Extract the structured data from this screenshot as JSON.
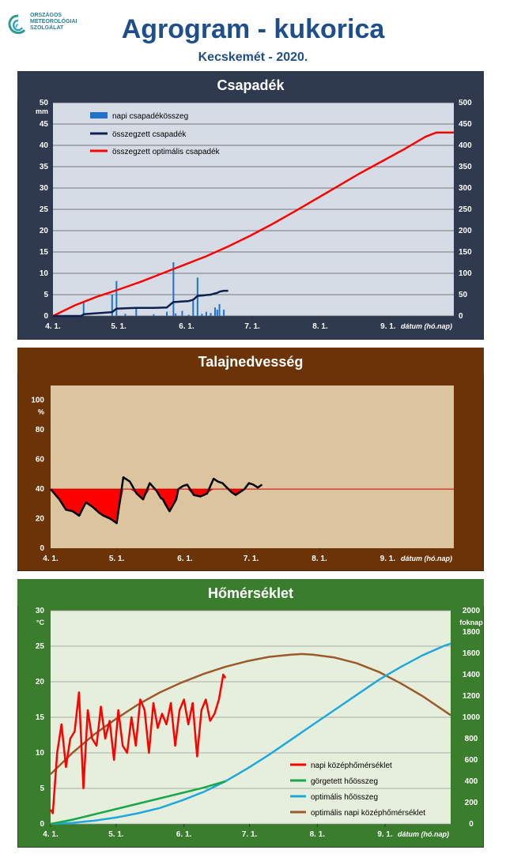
{
  "header": {
    "title": "Agrogram - kukorica",
    "subtitle": "Kecskemét - 2020.",
    "logo_lines": [
      "ORSZÁGOS",
      "METEOROLÓGIAI",
      "SZOLGÁLAT"
    ]
  },
  "colors": {
    "header_text": "#1f4e8c",
    "panel1_frame": "#2f3a4f",
    "panel1_plot": "#d6dce5",
    "panel2_frame": "#6b3306",
    "panel2_plot": "#dcc49e",
    "panel3_frame": "#3a7d2c",
    "panel3_plot": "#e6efdc"
  },
  "chart_data": [
    {
      "type": "bar+line",
      "title": "Csapadék",
      "ylabel_left": "mm",
      "xlabel": "dátum (hó.nap)",
      "x_ticks": [
        "4. 1.",
        "5. 1.",
        "6. 1.",
        "7. 1.",
        "8. 1.",
        "9. 1."
      ],
      "x_range": [
        0,
        183
      ],
      "ylim_left": [
        0,
        50
      ],
      "yticks_left": [
        0,
        5,
        10,
        15,
        20,
        25,
        30,
        35,
        40,
        45,
        50
      ],
      "ylim_right": [
        0,
        500
      ],
      "yticks_right": [
        0,
        50,
        100,
        150,
        200,
        250,
        300,
        350,
        400,
        450,
        500
      ],
      "grid": true,
      "legend_position": "top-left",
      "legend": [
        "napi csapadékösszeg",
        "összegzett csapadék",
        "összegzett optimális csapadék"
      ],
      "daily_precip": {
        "name": "napi csapadékösszeg",
        "axis": "left",
        "x": [
          13,
          14,
          27,
          29,
          33,
          38,
          46,
          52,
          55,
          56,
          59,
          62,
          64,
          66,
          68,
          70,
          72,
          74,
          75,
          76,
          78
        ],
        "values": [
          0.3,
          3.2,
          5.0,
          8.2,
          0.5,
          1.8,
          0.4,
          1.0,
          12.6,
          0.6,
          1.2,
          0.3,
          3.5,
          9.0,
          0.5,
          1.0,
          0.7,
          2.0,
          1.5,
          2.8,
          1.5
        ]
      },
      "cumulative_precip": {
        "name": "összegzett csapadék",
        "axis": "right",
        "x": [
          0,
          13,
          14,
          27,
          29,
          33,
          38,
          46,
          52,
          55,
          56,
          59,
          62,
          64,
          66,
          68,
          70,
          72,
          74,
          75,
          76,
          78,
          80
        ],
        "values": [
          0,
          0,
          4,
          9,
          17,
          18,
          19,
          19,
          20,
          33,
          33,
          34,
          35,
          38,
          47,
          48,
          49,
          50,
          53,
          54,
          57,
          59,
          59
        ]
      },
      "optimal_cumulative_precip": {
        "name": "összegzett optimális csapadék",
        "axis": "right",
        "x": [
          0,
          10,
          20,
          30,
          40,
          50,
          60,
          70,
          80,
          90,
          100,
          110,
          120,
          130,
          140,
          150,
          160,
          165,
          170,
          175,
          183
        ],
        "values": [
          0,
          25,
          45,
          62,
          80,
          100,
          120,
          140,
          163,
          188,
          215,
          244,
          274,
          304,
          334,
          362,
          390,
          405,
          420,
          430,
          430
        ]
      }
    },
    {
      "type": "line",
      "title": "Talajnedvesség",
      "ylabel": "%",
      "xlabel": "dátum (hó.nap)",
      "x_ticks": [
        "4. 1.",
        "5. 1.",
        "6. 1.",
        "7. 1.",
        "8. 1.",
        "9. 1."
      ],
      "x_range": [
        0,
        183
      ],
      "ylim": [
        0,
        110
      ],
      "yticks": [
        0,
        20,
        40,
        60,
        80,
        100
      ],
      "threshold": 40,
      "grid": false,
      "series": [
        {
          "name": "",
          "x": [
            0,
            4,
            7,
            10,
            13,
            16,
            19,
            22,
            24,
            27,
            30,
            33,
            36,
            39,
            42,
            45,
            48,
            50,
            51,
            52,
            54,
            57,
            58,
            60,
            62,
            65,
            68,
            71,
            74,
            76,
            78,
            80,
            82,
            84,
            86,
            88,
            90,
            92,
            94,
            96
          ],
          "values": [
            40,
            33,
            26,
            25,
            22,
            31,
            28,
            24,
            22,
            20,
            17,
            48,
            45,
            37,
            33,
            44,
            39,
            34,
            33,
            30,
            25,
            33,
            40,
            42,
            43,
            36,
            35,
            37,
            47,
            45,
            44,
            41,
            38,
            36,
            38,
            40,
            44,
            43,
            41,
            43
          ]
        }
      ]
    },
    {
      "type": "line",
      "title": "Hőmérséklet",
      "ylabel_left": "°C",
      "ylabel_right": "foknap",
      "xlabel": "dátum (hó.nap)",
      "x_ticks": [
        "4. 1.",
        "5. 1.",
        "6. 1.",
        "7. 1.",
        "8. 1.",
        "9. 1."
      ],
      "x_range": [
        0,
        183
      ],
      "ylim_left": [
        0,
        30
      ],
      "yticks_left": [
        0,
        5,
        10,
        15,
        20,
        25,
        30
      ],
      "ylim_right": [
        0,
        2000
      ],
      "yticks_right": [
        0,
        200,
        400,
        600,
        800,
        1000,
        1200,
        1400,
        1600,
        1800,
        2000
      ],
      "grid": true,
      "legend_position": "bottom-right",
      "legend": [
        "napi középhőmérséklet",
        "görgetett hőösszeg",
        "optimális hőösszeg",
        "optimális napi középhőmérséklet"
      ],
      "series": [
        {
          "name": "napi középhőmérséklet",
          "axis": "left",
          "x": [
            0,
            1,
            3,
            5,
            7,
            9,
            11,
            13,
            15,
            17,
            19,
            21,
            23,
            25,
            27,
            29,
            31,
            33,
            35,
            37,
            39,
            41,
            43,
            45,
            47,
            49,
            51,
            53,
            55,
            57,
            59,
            61,
            63,
            65,
            67,
            69,
            71,
            73,
            75,
            77,
            79,
            80
          ],
          "values": [
            2.0,
            1.5,
            10.0,
            14.0,
            8.0,
            12.0,
            13.0,
            18.5,
            5.0,
            16.0,
            12.0,
            11.0,
            16.5,
            12.0,
            14.5,
            9.0,
            16.0,
            11.0,
            10.0,
            15.0,
            11.0,
            17.5,
            16.0,
            10.0,
            17.0,
            13.5,
            15.5,
            14.0,
            17.0,
            11.0,
            16.0,
            17.5,
            14.0,
            17.0,
            9.5,
            16.0,
            17.5,
            14.5,
            15.5,
            17.5,
            21.0,
            20.5
          ]
        },
        {
          "name": "görgetett hőösszeg",
          "axis": "right",
          "x": [
            0,
            10,
            20,
            30,
            40,
            50,
            60,
            70,
            80
          ],
          "values": [
            0,
            40,
            90,
            140,
            190,
            240,
            290,
            340,
            400
          ]
        },
        {
          "name": "optimális hőösszeg",
          "axis": "right",
          "x": [
            0,
            10,
            20,
            30,
            40,
            50,
            60,
            70,
            80,
            90,
            100,
            110,
            120,
            130,
            140,
            150,
            160,
            170,
            180,
            183
          ],
          "values": [
            0,
            10,
            30,
            60,
            100,
            150,
            220,
            300,
            400,
            520,
            650,
            790,
            930,
            1070,
            1210,
            1350,
            1470,
            1580,
            1670,
            1690
          ]
        },
        {
          "name": "optimális napi középhőmérséklet",
          "axis": "left",
          "x": [
            0,
            10,
            20,
            30,
            40,
            50,
            60,
            70,
            80,
            90,
            100,
            110,
            115,
            120,
            130,
            140,
            150,
            160,
            170,
            183
          ],
          "values": [
            7.0,
            10.0,
            12.6,
            14.8,
            16.8,
            18.5,
            19.9,
            21.1,
            22.1,
            22.9,
            23.5,
            23.8,
            23.9,
            23.8,
            23.4,
            22.6,
            21.4,
            19.8,
            18.0,
            15.3
          ]
        }
      ]
    }
  ]
}
